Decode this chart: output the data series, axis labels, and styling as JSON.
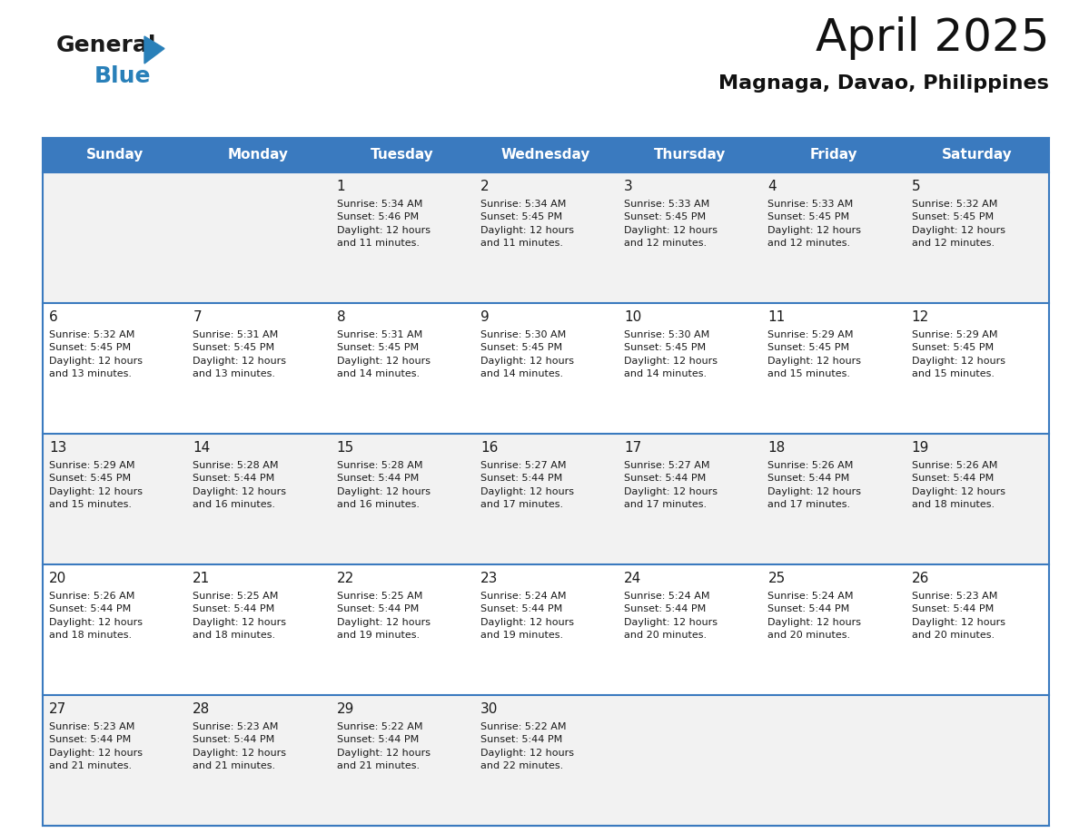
{
  "title": "April 2025",
  "subtitle": "Magnaga, Davao, Philippines",
  "header_color": "#3a7abf",
  "header_text_color": "#ffffff",
  "cell_bg_odd": "#f2f2f2",
  "cell_bg_even": "#ffffff",
  "border_color": "#3a7abf",
  "text_color": "#1a1a1a",
  "day_headers": [
    "Sunday",
    "Monday",
    "Tuesday",
    "Wednesday",
    "Thursday",
    "Friday",
    "Saturday"
  ],
  "calendar_data": [
    [
      {
        "day": "",
        "info": ""
      },
      {
        "day": "",
        "info": ""
      },
      {
        "day": "1",
        "info": "Sunrise: 5:34 AM\nSunset: 5:46 PM\nDaylight: 12 hours\nand 11 minutes."
      },
      {
        "day": "2",
        "info": "Sunrise: 5:34 AM\nSunset: 5:45 PM\nDaylight: 12 hours\nand 11 minutes."
      },
      {
        "day": "3",
        "info": "Sunrise: 5:33 AM\nSunset: 5:45 PM\nDaylight: 12 hours\nand 12 minutes."
      },
      {
        "day": "4",
        "info": "Sunrise: 5:33 AM\nSunset: 5:45 PM\nDaylight: 12 hours\nand 12 minutes."
      },
      {
        "day": "5",
        "info": "Sunrise: 5:32 AM\nSunset: 5:45 PM\nDaylight: 12 hours\nand 12 minutes."
      }
    ],
    [
      {
        "day": "6",
        "info": "Sunrise: 5:32 AM\nSunset: 5:45 PM\nDaylight: 12 hours\nand 13 minutes."
      },
      {
        "day": "7",
        "info": "Sunrise: 5:31 AM\nSunset: 5:45 PM\nDaylight: 12 hours\nand 13 minutes."
      },
      {
        "day": "8",
        "info": "Sunrise: 5:31 AM\nSunset: 5:45 PM\nDaylight: 12 hours\nand 14 minutes."
      },
      {
        "day": "9",
        "info": "Sunrise: 5:30 AM\nSunset: 5:45 PM\nDaylight: 12 hours\nand 14 minutes."
      },
      {
        "day": "10",
        "info": "Sunrise: 5:30 AM\nSunset: 5:45 PM\nDaylight: 12 hours\nand 14 minutes."
      },
      {
        "day": "11",
        "info": "Sunrise: 5:29 AM\nSunset: 5:45 PM\nDaylight: 12 hours\nand 15 minutes."
      },
      {
        "day": "12",
        "info": "Sunrise: 5:29 AM\nSunset: 5:45 PM\nDaylight: 12 hours\nand 15 minutes."
      }
    ],
    [
      {
        "day": "13",
        "info": "Sunrise: 5:29 AM\nSunset: 5:45 PM\nDaylight: 12 hours\nand 15 minutes."
      },
      {
        "day": "14",
        "info": "Sunrise: 5:28 AM\nSunset: 5:44 PM\nDaylight: 12 hours\nand 16 minutes."
      },
      {
        "day": "15",
        "info": "Sunrise: 5:28 AM\nSunset: 5:44 PM\nDaylight: 12 hours\nand 16 minutes."
      },
      {
        "day": "16",
        "info": "Sunrise: 5:27 AM\nSunset: 5:44 PM\nDaylight: 12 hours\nand 17 minutes."
      },
      {
        "day": "17",
        "info": "Sunrise: 5:27 AM\nSunset: 5:44 PM\nDaylight: 12 hours\nand 17 minutes."
      },
      {
        "day": "18",
        "info": "Sunrise: 5:26 AM\nSunset: 5:44 PM\nDaylight: 12 hours\nand 17 minutes."
      },
      {
        "day": "19",
        "info": "Sunrise: 5:26 AM\nSunset: 5:44 PM\nDaylight: 12 hours\nand 18 minutes."
      }
    ],
    [
      {
        "day": "20",
        "info": "Sunrise: 5:26 AM\nSunset: 5:44 PM\nDaylight: 12 hours\nand 18 minutes."
      },
      {
        "day": "21",
        "info": "Sunrise: 5:25 AM\nSunset: 5:44 PM\nDaylight: 12 hours\nand 18 minutes."
      },
      {
        "day": "22",
        "info": "Sunrise: 5:25 AM\nSunset: 5:44 PM\nDaylight: 12 hours\nand 19 minutes."
      },
      {
        "day": "23",
        "info": "Sunrise: 5:24 AM\nSunset: 5:44 PM\nDaylight: 12 hours\nand 19 minutes."
      },
      {
        "day": "24",
        "info": "Sunrise: 5:24 AM\nSunset: 5:44 PM\nDaylight: 12 hours\nand 20 minutes."
      },
      {
        "day": "25",
        "info": "Sunrise: 5:24 AM\nSunset: 5:44 PM\nDaylight: 12 hours\nand 20 minutes."
      },
      {
        "day": "26",
        "info": "Sunrise: 5:23 AM\nSunset: 5:44 PM\nDaylight: 12 hours\nand 20 minutes."
      }
    ],
    [
      {
        "day": "27",
        "info": "Sunrise: 5:23 AM\nSunset: 5:44 PM\nDaylight: 12 hours\nand 21 minutes."
      },
      {
        "day": "28",
        "info": "Sunrise: 5:23 AM\nSunset: 5:44 PM\nDaylight: 12 hours\nand 21 minutes."
      },
      {
        "day": "29",
        "info": "Sunrise: 5:22 AM\nSunset: 5:44 PM\nDaylight: 12 hours\nand 21 minutes."
      },
      {
        "day": "30",
        "info": "Sunrise: 5:22 AM\nSunset: 5:44 PM\nDaylight: 12 hours\nand 22 minutes."
      },
      {
        "day": "",
        "info": ""
      },
      {
        "day": "",
        "info": ""
      },
      {
        "day": "",
        "info": ""
      }
    ]
  ],
  "logo_color_general": "#1a1a1a",
  "logo_color_blue": "#2980b9",
  "logo_triangle_color": "#2980b9",
  "title_fontsize": 36,
  "subtitle_fontsize": 16,
  "header_fontsize": 11,
  "day_num_fontsize": 11,
  "info_fontsize": 8
}
